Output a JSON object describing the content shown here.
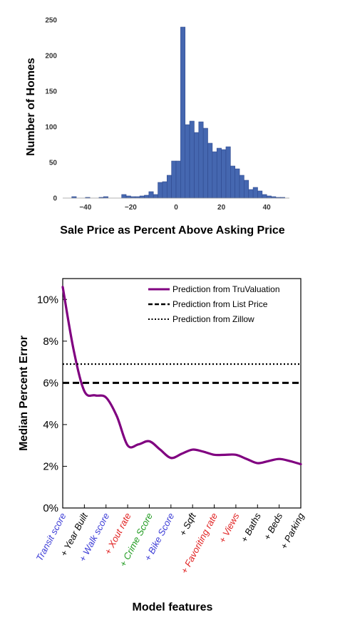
{
  "chart_data": [
    {
      "type": "bar",
      "title": "",
      "xlabel": "Sale Price as Percent Above Asking Price",
      "ylabel": "Number of Homes",
      "xlim": [
        -50,
        50
      ],
      "ylim": [
        0,
        250
      ],
      "xticks": [
        "−40",
        "−20",
        "0",
        "20",
        "40"
      ],
      "xtick_values": [
        -40,
        -20,
        0,
        20,
        40
      ],
      "yticks": [
        "0",
        "50",
        "100",
        "150",
        "200",
        "250"
      ],
      "ytick_values": [
        0,
        50,
        100,
        150,
        200,
        250
      ],
      "bin_width": 2,
      "bins": [
        {
          "x0": -46,
          "v": 2
        },
        {
          "x0": -40,
          "v": 1
        },
        {
          "x0": -34,
          "v": 1
        },
        {
          "x0": -32,
          "v": 2
        },
        {
          "x0": -24,
          "v": 5
        },
        {
          "x0": -22,
          "v": 3
        },
        {
          "x0": -20,
          "v": 2
        },
        {
          "x0": -18,
          "v": 2
        },
        {
          "x0": -16,
          "v": 3
        },
        {
          "x0": -14,
          "v": 4
        },
        {
          "x0": -12,
          "v": 9
        },
        {
          "x0": -10,
          "v": 5
        },
        {
          "x0": -8,
          "v": 22
        },
        {
          "x0": -6,
          "v": 23
        },
        {
          "x0": -4,
          "v": 32
        },
        {
          "x0": -2,
          "v": 52
        },
        {
          "x0": 0,
          "v": 52
        },
        {
          "x0": 2,
          "v": 240
        },
        {
          "x0": 4,
          "v": 103
        },
        {
          "x0": 6,
          "v": 108
        },
        {
          "x0": 8,
          "v": 92
        },
        {
          "x0": 10,
          "v": 107
        },
        {
          "x0": 12,
          "v": 98
        },
        {
          "x0": 14,
          "v": 77
        },
        {
          "x0": 16,
          "v": 65
        },
        {
          "x0": 18,
          "v": 70
        },
        {
          "x0": 20,
          "v": 68
        },
        {
          "x0": 22,
          "v": 72
        },
        {
          "x0": 24,
          "v": 45
        },
        {
          "x0": 26,
          "v": 41
        },
        {
          "x0": 28,
          "v": 32
        },
        {
          "x0": 30,
          "v": 25
        },
        {
          "x0": 32,
          "v": 12
        },
        {
          "x0": 34,
          "v": 15
        },
        {
          "x0": 36,
          "v": 10
        },
        {
          "x0": 38,
          "v": 5
        },
        {
          "x0": 40,
          "v": 3
        },
        {
          "x0": 42,
          "v": 2
        },
        {
          "x0": 44,
          "v": 1
        },
        {
          "x0": 46,
          "v": 1
        }
      ],
      "bar_color": "#4567b0",
      "bar_edge": "#2f4a8f",
      "grid": false
    },
    {
      "type": "line",
      "title": "",
      "xlabel": "Model features",
      "ylabel": "Median Percent Error",
      "ylim": [
        0,
        11
      ],
      "yticks": [
        "0%",
        "2%",
        "4%",
        "6%",
        "8%",
        "10%"
      ],
      "ytick_values": [
        0,
        2,
        4,
        6,
        8,
        10
      ],
      "categories": [
        "Transit score",
        "+ Year Built",
        "+ Walk score",
        "+ Xout rate",
        "+ Crime Score",
        "+ Bike Score",
        "+ Sqft",
        "+ Favoriting rate",
        "+ Views",
        "+ Baths",
        "+ Beds",
        "+ Parking"
      ],
      "category_colors": [
        "#3b3bd6",
        "#000000",
        "#3b3bd6",
        "#e02020",
        "#1f9a1f",
        "#3b3bd6",
        "#000000",
        "#e02020",
        "#e02020",
        "#000000",
        "#000000",
        "#000000"
      ],
      "series": [
        {
          "name": "Prediction from TruValuation",
          "style": "solid",
          "color": "#800080",
          "x": [
            0,
            0.5,
            1,
            1.5,
            2,
            2.5,
            3,
            3.5,
            4,
            4.5,
            5,
            5.5,
            6,
            6.5,
            7,
            7.5,
            8,
            8.5,
            9,
            9.5,
            10,
            10.5,
            11
          ],
          "values": [
            10.6,
            7.6,
            5.6,
            5.4,
            5.3,
            4.4,
            3.0,
            3.05,
            3.2,
            2.8,
            2.4,
            2.6,
            2.8,
            2.7,
            2.55,
            2.55,
            2.55,
            2.35,
            2.15,
            2.25,
            2.35,
            2.25,
            2.1
          ]
        },
        {
          "name": "Prediction from List Price",
          "style": "dashed",
          "color": "#000000",
          "constant": 6.0
        },
        {
          "name": "Prediction from Zillow",
          "style": "dotted",
          "color": "#000000",
          "constant": 6.9
        }
      ],
      "legend_position": "top-right"
    }
  ]
}
